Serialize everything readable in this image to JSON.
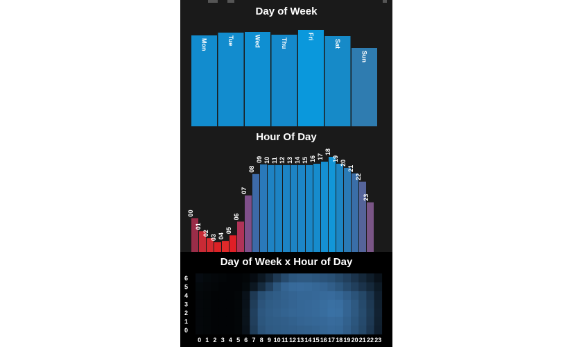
{
  "colors": {
    "panel_bg": "#1a1a1a",
    "heatmap_bg": "#000000",
    "bar_blue": "#1a8fcf",
    "bar_red": "#d92b2b",
    "bar_purple": "#7a5586"
  },
  "chart_data": [
    {
      "type": "bar",
      "title": "Day of Week",
      "categories": [
        "Mon",
        "Tue",
        "Wed",
        "Thu",
        "Fri",
        "Sat",
        "Sun"
      ],
      "values": [
        131,
        135,
        136,
        132,
        139,
        130,
        113
      ],
      "ylim": [
        0,
        140
      ],
      "colors": [
        "#128cce",
        "#128cce",
        "#0f8fd2",
        "#1489cb",
        "#0a98dc",
        "#168ac8",
        "#2f7cb0"
      ],
      "grid": false
    },
    {
      "type": "bar",
      "title": "Hour Of Day",
      "categories": [
        "00",
        "01",
        "02",
        "03",
        "04",
        "05",
        "06",
        "07",
        "08",
        "09",
        "10",
        "11",
        "12",
        "13",
        "14",
        "15",
        "16",
        "17",
        "18",
        "19",
        "20",
        "21",
        "22",
        "23"
      ],
      "values": [
        49,
        30,
        20,
        14,
        16,
        24,
        44,
        82,
        113,
        127,
        126,
        126,
        126,
        126,
        126,
        126,
        128,
        131,
        138,
        128,
        122,
        114,
        102,
        72
      ],
      "ylim": [
        0,
        140
      ],
      "colors": [
        "#9a2d48",
        "#c92a35",
        "#d32a2f",
        "#dc2226",
        "#e02a2a",
        "#e01f26",
        "#b03358",
        "#7f4f8a",
        "#3d6aa8",
        "#2a79ba",
        "#1e83c4",
        "#1c83c4",
        "#1c84c5",
        "#1d84c5",
        "#1c86c7",
        "#1a88c9",
        "#168ccd",
        "#1590d2",
        "#1296d8",
        "#1d85c3",
        "#2a7ab5",
        "#3a6ea8",
        "#55649a",
        "#7a5586"
      ],
      "grid": false
    },
    {
      "type": "heatmap",
      "title": "Day of Week x Hour of Day",
      "x": [
        "0",
        "1",
        "2",
        "3",
        "4",
        "5",
        "6",
        "7",
        "8",
        "9",
        "10",
        "11",
        "12",
        "13",
        "14",
        "15",
        "16",
        "17",
        "18",
        "19",
        "20",
        "21",
        "22",
        "23"
      ],
      "y": [
        "0",
        "1",
        "2",
        "3",
        "4",
        "5",
        "6"
      ],
      "values": [
        [
          0.05,
          0.04,
          0.03,
          0.03,
          0.03,
          0.04,
          0.12,
          0.42,
          0.58,
          0.63,
          0.64,
          0.65,
          0.66,
          0.67,
          0.68,
          0.69,
          0.71,
          0.73,
          0.72,
          0.66,
          0.58,
          0.5,
          0.38,
          0.22
        ],
        [
          0.05,
          0.04,
          0.03,
          0.03,
          0.03,
          0.04,
          0.13,
          0.44,
          0.6,
          0.64,
          0.65,
          0.66,
          0.68,
          0.7,
          0.71,
          0.72,
          0.73,
          0.75,
          0.74,
          0.68,
          0.6,
          0.52,
          0.4,
          0.23
        ],
        [
          0.05,
          0.04,
          0.03,
          0.03,
          0.03,
          0.04,
          0.13,
          0.45,
          0.61,
          0.65,
          0.67,
          0.69,
          0.71,
          0.72,
          0.73,
          0.74,
          0.76,
          0.79,
          0.78,
          0.7,
          0.62,
          0.53,
          0.41,
          0.24
        ],
        [
          0.05,
          0.04,
          0.03,
          0.03,
          0.03,
          0.04,
          0.12,
          0.43,
          0.59,
          0.64,
          0.66,
          0.68,
          0.7,
          0.72,
          0.73,
          0.74,
          0.76,
          0.78,
          0.77,
          0.7,
          0.62,
          0.52,
          0.4,
          0.23
        ],
        [
          0.05,
          0.04,
          0.03,
          0.03,
          0.03,
          0.04,
          0.12,
          0.4,
          0.56,
          0.62,
          0.65,
          0.68,
          0.7,
          0.72,
          0.72,
          0.73,
          0.74,
          0.75,
          0.72,
          0.66,
          0.58,
          0.5,
          0.38,
          0.22
        ],
        [
          0.06,
          0.05,
          0.04,
          0.03,
          0.03,
          0.03,
          0.06,
          0.16,
          0.3,
          0.45,
          0.6,
          0.7,
          0.74,
          0.75,
          0.74,
          0.72,
          0.7,
          0.66,
          0.6,
          0.52,
          0.44,
          0.36,
          0.28,
          0.18
        ],
        [
          0.08,
          0.06,
          0.05,
          0.04,
          0.03,
          0.03,
          0.04,
          0.08,
          0.16,
          0.26,
          0.4,
          0.52,
          0.6,
          0.62,
          0.62,
          0.6,
          0.58,
          0.56,
          0.5,
          0.44,
          0.36,
          0.28,
          0.2,
          0.12
        ]
      ],
      "color_low": "#000000",
      "color_high": "#4a8fd0"
    }
  ]
}
